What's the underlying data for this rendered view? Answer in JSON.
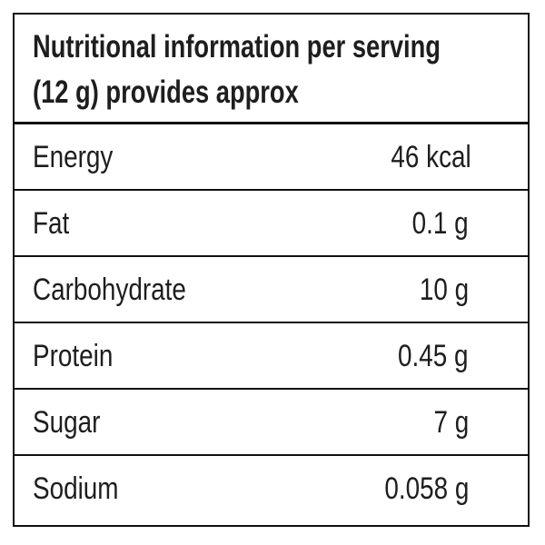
{
  "header": {
    "line1": "Nutritional information per serving",
    "line2": "(12 g) provides approx"
  },
  "rows": [
    {
      "label": "Energy",
      "value": "46 kcal"
    },
    {
      "label": "Fat",
      "value": "0.1 g"
    },
    {
      "label": "Carbohydrate",
      "value": "10 g"
    },
    {
      "label": "Protein",
      "value": "0.45 g"
    },
    {
      "label": "Sugar",
      "value": "7 g"
    },
    {
      "label": "Sodium",
      "value": "0.058 g"
    }
  ]
}
